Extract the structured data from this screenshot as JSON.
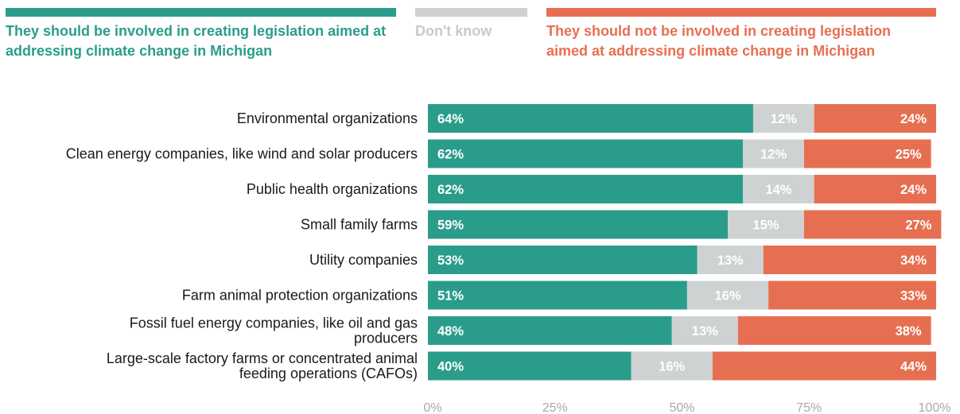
{
  "legend": {
    "agree": "They should be involved in creating legislation aimed at addressing climate change in Michigan",
    "dont_know": "Don't know",
    "disagree": "They should not be involved in creating legislation aimed at addressing climate change in Michigan"
  },
  "colors": {
    "agree": "#2a9d8a",
    "dont_know": "#cfd2d2",
    "disagree": "#e76f51",
    "agree_text": "#2a9d8a",
    "dont_know_text": "#c8cbcb",
    "disagree_text": "#e76f51"
  },
  "chart_data": {
    "type": "bar",
    "orientation": "horizontal",
    "stacked": true,
    "categories": [
      "Environmental organizations",
      "Clean energy companies, like wind and solar producers",
      "Public health organizations",
      "Small family farms",
      "Utility companies",
      "Farm animal protection organizations",
      "Fossil fuel energy companies, like oil and gas producers",
      "Large-scale factory farms or concentrated animal feeding operations (CAFOs)"
    ],
    "series": [
      {
        "name": "They should be involved in creating legislation aimed at addressing climate change in Michigan",
        "values": [
          64,
          62,
          62,
          59,
          53,
          51,
          48,
          40
        ]
      },
      {
        "name": "Don't know",
        "values": [
          12,
          12,
          14,
          15,
          13,
          16,
          13,
          16
        ]
      },
      {
        "name": "They should not be involved in creating legislation aimed at addressing climate change in Michigan",
        "values": [
          24,
          25,
          24,
          27,
          34,
          33,
          38,
          44
        ]
      }
    ],
    "xlim": [
      0,
      100
    ],
    "xticks": [
      "0%",
      "25%",
      "50%",
      "75%",
      "100%"
    ],
    "value_suffix": "%",
    "grid": false,
    "legend_position": "top"
  }
}
